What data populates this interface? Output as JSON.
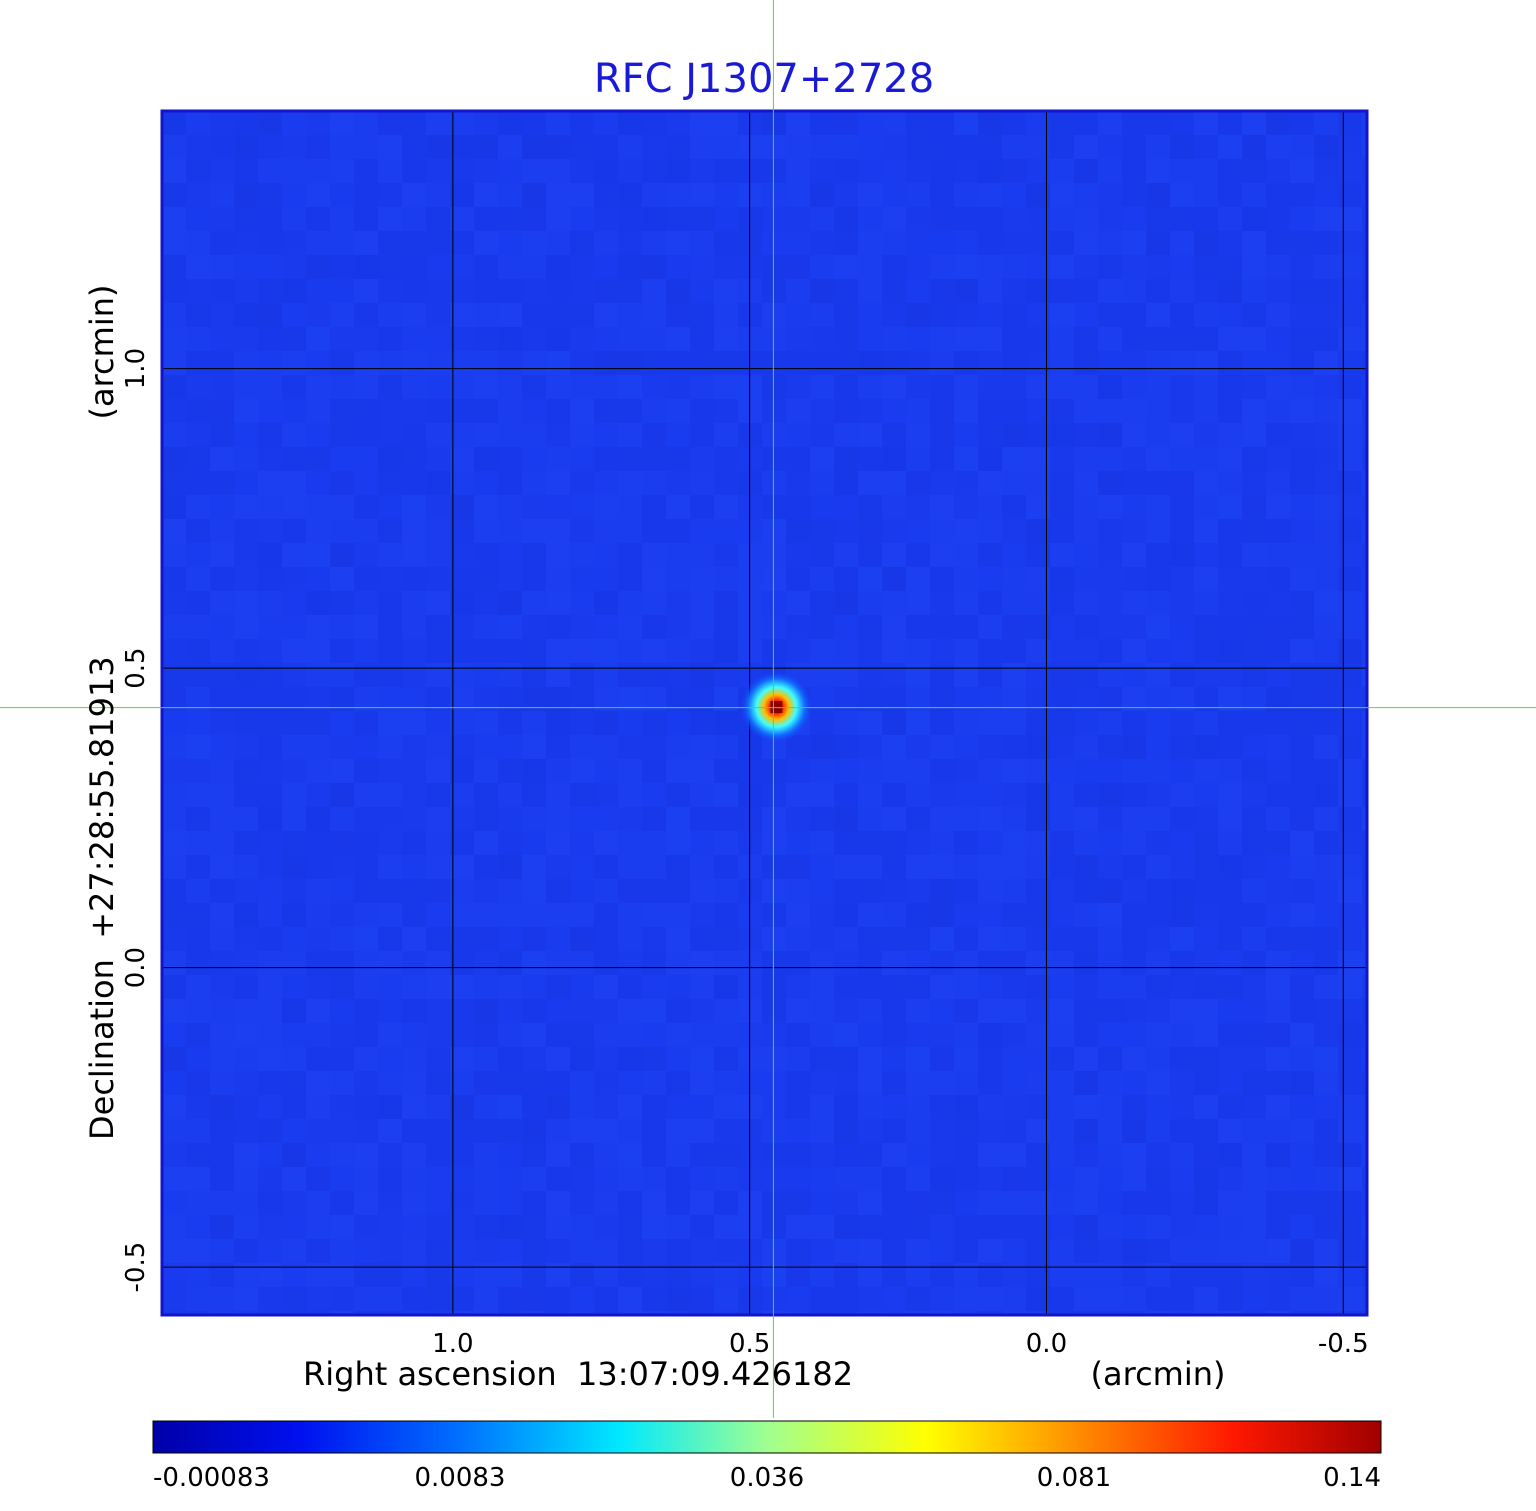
{
  "chart_data": {
    "type": "heatmap",
    "title": "RFC J1307+2728",
    "xlabel": "Right ascension  13:07:09.426182",
    "xunit": "(arcmin)",
    "ylabel": "Declination  +27:28:55.81913",
    "yunit": "(arcmin)",
    "x_ticks": [
      {
        "value": 1.0,
        "label": "1.0"
      },
      {
        "value": 0.5,
        "label": "0.5"
      },
      {
        "value": 0.0,
        "label": "0.0"
      },
      {
        "value": -0.5,
        "label": "-0.5"
      }
    ],
    "y_ticks": [
      {
        "value": 1.0,
        "label": "1.0"
      },
      {
        "value": 0.5,
        "label": "0.5"
      },
      {
        "value": 0.0,
        "label": "0.0"
      },
      {
        "value": -0.5,
        "label": "-0.5"
      }
    ],
    "xlim": [
      1.49,
      -0.54
    ],
    "ylim": [
      -0.58,
      1.43
    ],
    "x_reversed": true,
    "grid": true,
    "crosshair": {
      "x": 0.46,
      "y": 0.434
    },
    "peak": {
      "x": 0.455,
      "y": 0.435,
      "value": 0.14
    },
    "colormap": "jet",
    "colorbar_ticks": [
      "-0.00083",
      "0.0083",
      "0.036",
      "0.081",
      "0.14"
    ],
    "colorbar_range": [
      -0.00083,
      0.14
    ]
  },
  "colors": {
    "title": "#1a1ad6",
    "frame": "#1414c8",
    "background_map": "#1a3cf0",
    "crosshair": "#40e040",
    "grid": "#000000"
  }
}
